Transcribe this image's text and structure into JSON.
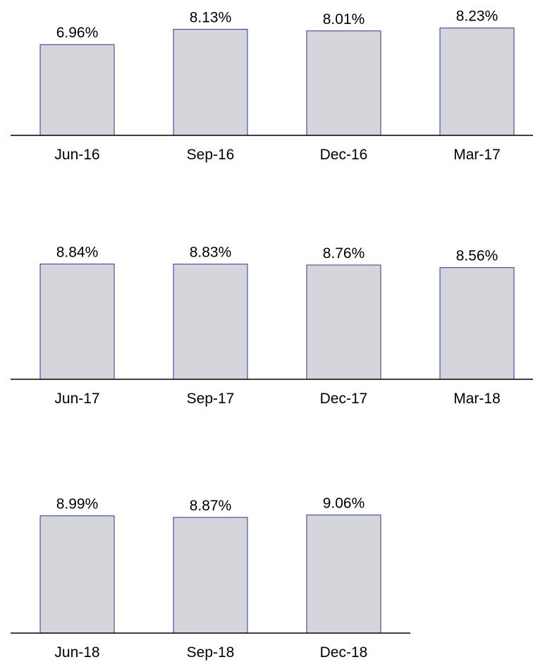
{
  "chart_data": [
    {
      "type": "bar",
      "categories": [
        "Jun-16",
        "Sep-16",
        "Dec-16",
        "Mar-17"
      ],
      "values": [
        6.96,
        8.13,
        8.01,
        8.23
      ],
      "value_labels": [
        "6.96%",
        "8.13%",
        "8.01%",
        "8.23%"
      ],
      "color": "#d5d6db",
      "edge_color": "#2e3192",
      "ylim": [
        0,
        10
      ]
    },
    {
      "type": "bar",
      "categories": [
        "Jun-17",
        "Sep-17",
        "Dec-17",
        "Mar-18"
      ],
      "values": [
        8.84,
        8.83,
        8.76,
        8.56
      ],
      "value_labels": [
        "8.84%",
        "8.83%",
        "8.76%",
        "8.56%"
      ],
      "color": "#d5d6db",
      "edge_color": "#2e3192",
      "ylim": [
        0,
        10
      ]
    },
    {
      "type": "bar",
      "categories": [
        "Jun-18",
        "Sep-18",
        "Dec-18"
      ],
      "values": [
        8.99,
        8.87,
        9.06
      ],
      "value_labels": [
        "8.99%",
        "8.87%",
        "9.06%"
      ],
      "color": "#d5d6db",
      "edge_color": "#2e3192",
      "ylim": [
        0,
        10
      ]
    }
  ]
}
